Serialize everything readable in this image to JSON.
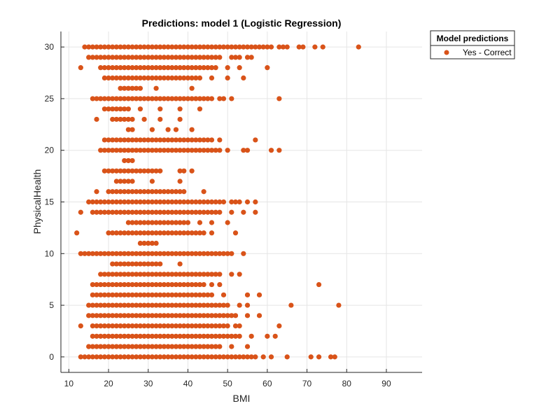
{
  "chart_data": {
    "type": "scatter",
    "title": "Predictions: model 1 (Logistic Regression)",
    "xlabel": "BMI",
    "ylabel": "PhysicalHealth",
    "xlim": [
      8,
      99
    ],
    "ylim": [
      -1.5,
      31.5
    ],
    "xticks": [
      10,
      20,
      30,
      40,
      50,
      60,
      70,
      80,
      90
    ],
    "yticks": [
      0,
      5,
      10,
      15,
      20,
      25,
      30
    ],
    "grid": true,
    "legend_position": "outside-top-right",
    "legend_title": "Model predictions",
    "colors": {
      "marker": "#D95319",
      "grid": "#e5e5e5",
      "axis": "#262626"
    },
    "series": [
      {
        "name": "Yes - Correct",
        "marker": "circle",
        "rows": [
          {
            "y": 30,
            "x_min": 14,
            "x_max": 61,
            "extra_x": [
              63,
              64,
              65,
              68,
              69,
              72,
              74,
              83
            ]
          },
          {
            "y": 29,
            "x_min": 15,
            "x_max": 48,
            "extra_x": [
              51,
              52,
              53,
              55,
              56
            ]
          },
          {
            "y": 28,
            "x_min": 18,
            "x_max": 47,
            "extra_x": [
              13,
              50,
              53,
              60
            ]
          },
          {
            "y": 27,
            "x_min": 19,
            "x_max": 43,
            "extra_x": [
              46,
              50,
              54
            ]
          },
          {
            "y": 26,
            "x_min": 23,
            "x_max": 28,
            "extra_x": [
              32,
              41
            ]
          },
          {
            "y": 25,
            "x_min": 16,
            "x_max": 46,
            "extra_x": [
              48,
              49,
              51,
              63
            ]
          },
          {
            "y": 24,
            "x_min": 19,
            "x_max": 25,
            "extra_x": [
              28,
              33,
              38,
              43
            ]
          },
          {
            "y": 23,
            "x_min": 21,
            "x_max": 26,
            "extra_x": [
              17,
              29,
              33,
              38
            ]
          },
          {
            "y": 22,
            "x_min": 25,
            "x_max": 26,
            "extra_x": [
              31,
              35,
              37,
              41
            ]
          },
          {
            "y": 21,
            "x_min": 19,
            "x_max": 46,
            "extra_x": [
              48,
              57
            ]
          },
          {
            "y": 20,
            "x_min": 18,
            "x_max": 48,
            "extra_x": [
              50,
              54,
              55,
              61,
              63
            ]
          },
          {
            "y": 19,
            "x_min": 24,
            "x_max": 26,
            "extra_x": []
          },
          {
            "y": 18,
            "x_min": 19,
            "x_max": 33,
            "extra_x": [
              38,
              39,
              41
            ]
          },
          {
            "y": 17,
            "x_min": 22,
            "x_max": 26,
            "extra_x": [
              31,
              38
            ]
          },
          {
            "y": 16,
            "x_min": 20,
            "x_max": 39,
            "extra_x": [
              17,
              44
            ]
          },
          {
            "y": 15,
            "x_min": 15,
            "x_max": 49,
            "extra_x": [
              51,
              52,
              53,
              55,
              57
            ]
          },
          {
            "y": 14,
            "x_min": 16,
            "x_max": 48,
            "extra_x": [
              13,
              51,
              54,
              57
            ]
          },
          {
            "y": 13,
            "x_min": 25,
            "x_max": 40,
            "extra_x": [
              43,
              46,
              50
            ]
          },
          {
            "y": 12,
            "x_min": 20,
            "x_max": 44,
            "extra_x": [
              12,
              46,
              52
            ]
          },
          {
            "y": 11,
            "x_min": 28,
            "x_max": 32,
            "extra_x": []
          },
          {
            "y": 10,
            "x_min": 13,
            "x_max": 51,
            "extra_x": [
              54
            ]
          },
          {
            "y": 9,
            "x_min": 21,
            "x_max": 33,
            "extra_x": [
              38
            ]
          },
          {
            "y": 8,
            "x_min": 18,
            "x_max": 48,
            "extra_x": [
              51,
              53
            ]
          },
          {
            "y": 7,
            "x_min": 17,
            "x_max": 44,
            "extra_x": [
              16,
              46,
              48,
              73
            ]
          },
          {
            "y": 6,
            "x_min": 16,
            "x_max": 46,
            "extra_x": [
              49,
              55,
              58
            ]
          },
          {
            "y": 5,
            "x_min": 15,
            "x_max": 50,
            "extra_x": [
              53,
              55,
              66,
              78
            ]
          },
          {
            "y": 4,
            "x_min": 15,
            "x_max": 52,
            "extra_x": [
              55,
              58
            ]
          },
          {
            "y": 3,
            "x_min": 16,
            "x_max": 50,
            "extra_x": [
              13,
              52,
              53,
              63
            ]
          },
          {
            "y": 2,
            "x_min": 16,
            "x_max": 53,
            "extra_x": [
              56,
              60,
              62
            ]
          },
          {
            "y": 1,
            "x_min": 15,
            "x_max": 48,
            "extra_x": [
              51,
              55
            ]
          },
          {
            "y": 0,
            "x_min": 14,
            "x_max": 57,
            "extra_x": [
              13,
              59,
              61,
              65,
              71,
              73,
              76,
              77
            ]
          }
        ]
      }
    ]
  }
}
